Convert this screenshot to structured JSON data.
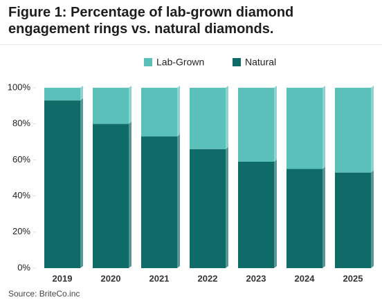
{
  "chart_data": {
    "type": "stacked-bar",
    "title": "Figure 1: Percentage of lab-grown diamond engagement rings vs. natural diamonds.",
    "categories": [
      "2019",
      "2020",
      "2021",
      "2022",
      "2023",
      "2024",
      "2025"
    ],
    "series": [
      {
        "name": "Natural",
        "color": "#0e6b68",
        "values": [
          93,
          80,
          73,
          66,
          59,
          55,
          53
        ]
      },
      {
        "name": "Lab-Grown",
        "color": "#5bbfba",
        "values": [
          7,
          20,
          27,
          34,
          41,
          45,
          47
        ]
      }
    ],
    "ylim": [
      0,
      100
    ],
    "yticks": [
      {
        "value": 0,
        "label": "0%"
      },
      {
        "value": 20,
        "label": "20%"
      },
      {
        "value": 40,
        "label": "40%"
      },
      {
        "value": 60,
        "label": "60%"
      },
      {
        "value": 80,
        "label": "80%"
      },
      {
        "value": 100,
        "label": "100%"
      }
    ],
    "legend_order": [
      1,
      0
    ],
    "source": "Source: BriteCo.inc"
  }
}
